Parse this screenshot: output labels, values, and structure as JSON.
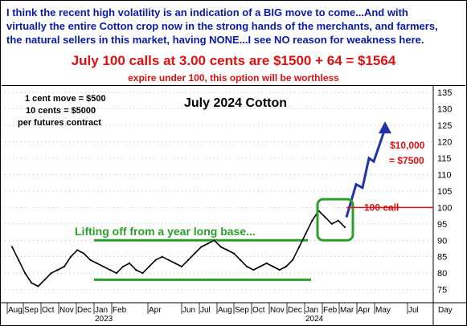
{
  "header": {
    "line1": "I think the recent high volatility is an indication of a BIG move to come...And with",
    "line2": "virtually the entire Cotton crop now in the strong hands of the merchants, and farmers,",
    "line3": "the natural sellers in this market, having NONE...I see NO reason for weakness here.",
    "calls": "July 100 calls at 3.00 cents are $1500 + 64 = $1564",
    "expire": "expire under 100, this option will be worthless"
  },
  "colors": {
    "header_text": "#0a1aa8",
    "red": "#e01010",
    "green": "#2aa02a",
    "arrow": "#2233aa",
    "price": "#000000"
  },
  "chart_data": {
    "type": "line",
    "title": "July 2024 Cotton",
    "info": [
      "1 cent move = $500",
      "10 cents = $5000",
      "per futures contract"
    ],
    "y_ticks": [
      75,
      80,
      85,
      90,
      95,
      100,
      105,
      110,
      115,
      120,
      125,
      130,
      135
    ],
    "ylim": [
      71,
      137
    ],
    "x_labels": [
      "Aug",
      "Sep",
      "Oct",
      "Nov",
      "Dec",
      "Jan",
      "Feb",
      "Apr",
      "Jun",
      "Jul",
      "Aug",
      "Sep",
      "Oct",
      "Nov",
      "Dec",
      "Jan",
      "Feb",
      "Mar",
      "Apr",
      "May",
      "Jul",
      "Day"
    ],
    "year_labels": [
      "2023",
      "2024"
    ],
    "annotations": {
      "base_text": "Lifting off from a year long base...",
      "call_label": "100 call",
      "target_value": "$10,000",
      "target_equiv": "= $7500",
      "base_top": 90,
      "base_bottom": 78,
      "strike": 100
    },
    "series": [
      {
        "values": [
          88,
          84,
          80,
          77,
          76,
          78,
          80,
          81,
          82,
          85,
          87,
          86,
          84,
          83,
          82,
          81,
          80,
          82,
          83,
          81,
          80,
          82,
          84,
          85,
          84,
          83,
          82,
          84,
          86,
          88,
          89,
          90,
          88,
          87,
          86,
          84,
          82,
          81,
          82,
          83,
          82,
          81,
          82,
          84,
          88,
          92,
          96,
          99,
          97,
          95,
          96,
          94
        ]
      },
      {
        "values": [
          97,
          107,
          106,
          115,
          114,
          124
        ]
      }
    ]
  }
}
